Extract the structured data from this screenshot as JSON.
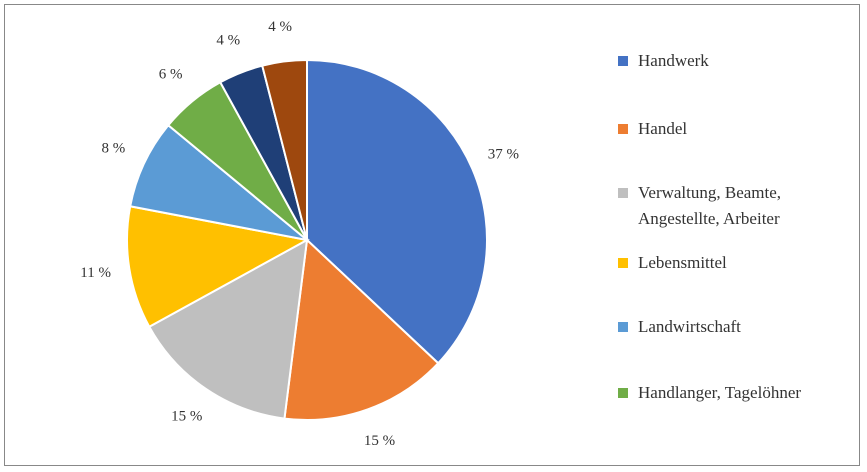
{
  "chart_data": {
    "type": "pie",
    "categories": [
      "Handwerk",
      "Handel",
      "Verwaltung, Beamte, Angestellte, Arbeiter",
      "Lebensmittel",
      "Landwirtschaft",
      "Handlanger, Tagelöhner",
      null,
      null
    ],
    "values": [
      37,
      15,
      15,
      11,
      8,
      6,
      4,
      4
    ],
    "value_labels": [
      "37 %",
      "15 %",
      "15 %",
      "11 %",
      "8 %",
      "6 %",
      "4 %",
      "4 %"
    ],
    "colors": [
      "#4472c4",
      "#ed7d31",
      "#bfbfbf",
      "#ffc000",
      "#5b9bd5",
      "#70ad47",
      "#1f3f77",
      "#9e480e"
    ],
    "legend": "right"
  }
}
